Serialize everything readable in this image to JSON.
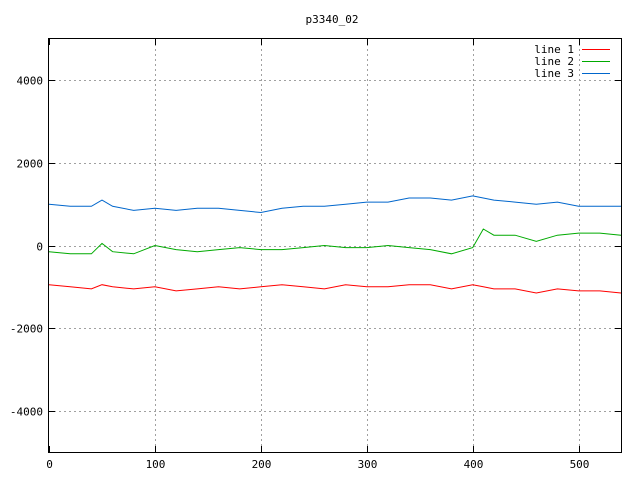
{
  "chart_data": {
    "type": "line",
    "title": "p3340_02",
    "xlabel": "",
    "ylabel": "",
    "xlim": [
      0,
      540
    ],
    "ylim": [
      -5000,
      5000
    ],
    "xticks": [
      0,
      100,
      200,
      300,
      400,
      500
    ],
    "yticks": [
      -4000,
      -2000,
      0,
      2000,
      4000
    ],
    "x_tick_labels": [
      "0",
      "100",
      "200",
      "300",
      "400",
      "500"
    ],
    "y_tick_labels": [
      "-4000",
      "-2000",
      "0",
      "2000",
      "4000"
    ],
    "grid": true,
    "legend_position": "top-right",
    "x": [
      0,
      20,
      40,
      50,
      60,
      80,
      100,
      120,
      140,
      160,
      180,
      200,
      220,
      240,
      260,
      280,
      300,
      320,
      340,
      360,
      380,
      400,
      410,
      420,
      440,
      460,
      480,
      500,
      520,
      540
    ],
    "series": [
      {
        "name": "line 1",
        "color": "#ff0000",
        "values": [
          -950,
          -1000,
          -1050,
          -950,
          -1000,
          -1050,
          -1000,
          -1100,
          -1050,
          -1000,
          -1050,
          -1000,
          -950,
          -1000,
          -1050,
          -950,
          -1000,
          -1000,
          -950,
          -950,
          -1050,
          -950,
          -1000,
          -1050,
          -1050,
          -1150,
          -1050,
          -1100,
          -1100,
          -1150
        ]
      },
      {
        "name": "line 2",
        "color": "#00aa00",
        "values": [
          -150,
          -200,
          -200,
          50,
          -150,
          -200,
          0,
          -100,
          -150,
          -100,
          -50,
          -100,
          -100,
          -50,
          0,
          -50,
          -50,
          0,
          -50,
          -100,
          -200,
          -50,
          400,
          250,
          250,
          100,
          250,
          300,
          300,
          250
        ]
      },
      {
        "name": "line 3",
        "color": "#0066cc",
        "values": [
          1000,
          950,
          950,
          1100,
          950,
          850,
          900,
          850,
          900,
          900,
          850,
          800,
          900,
          950,
          950,
          1000,
          1050,
          1050,
          1150,
          1150,
          1100,
          1200,
          1150,
          1100,
          1050,
          1000,
          1050,
          950,
          950,
          950
        ]
      }
    ]
  }
}
